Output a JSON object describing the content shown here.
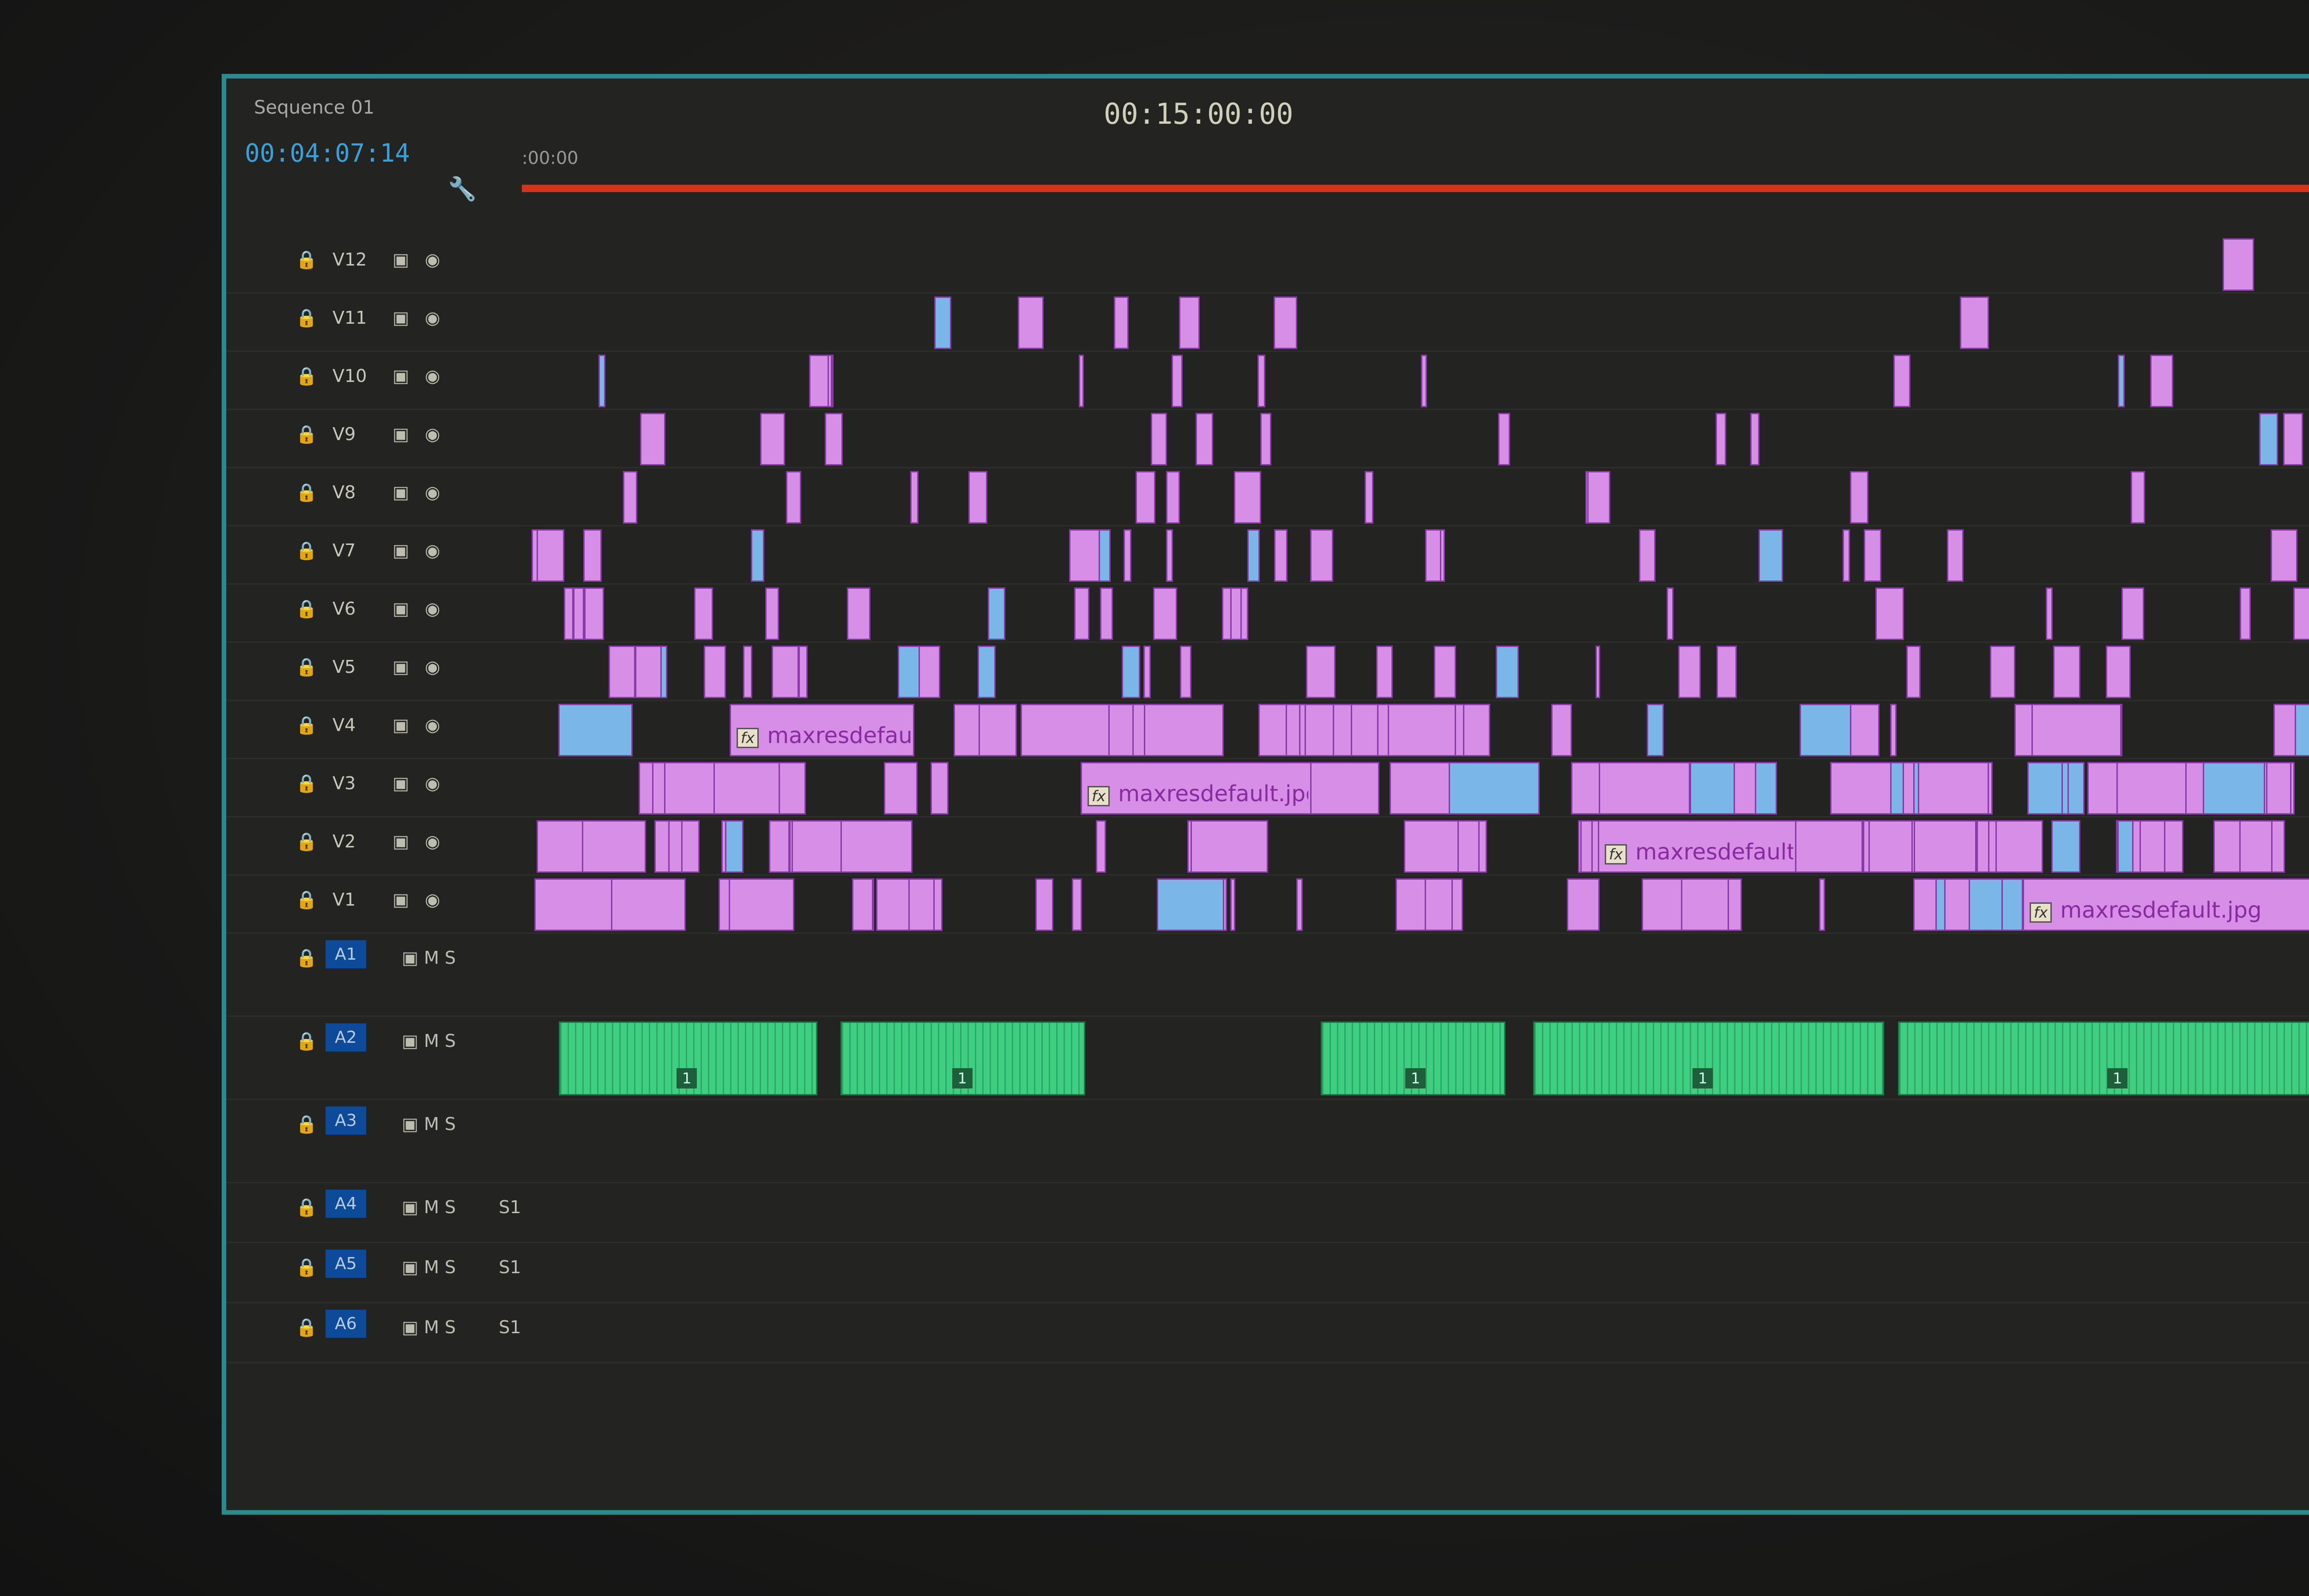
{
  "sequence": {
    "tab_label": "Sequence 01",
    "current_timecode": "00:04:07:14"
  },
  "ruler": {
    "start_label": ":00:00",
    "marker_timecode": "00:15:00:00"
  },
  "colors": {
    "video_clip": "#d68ee6",
    "audio_clip": "#3fcf82",
    "work_area_bar": "#d8321c",
    "track_target": "#0d4a9a",
    "panel_border": "#2a8a8c"
  },
  "video_tracks": [
    "V12",
    "V11",
    "V10",
    "V9",
    "V8",
    "V7",
    "V6",
    "V5",
    "V4",
    "V3",
    "V2",
    "V1"
  ],
  "audio_tracks": [
    "A1",
    "A2",
    "A3",
    "A4",
    "A5",
    "A6"
  ],
  "audio_controls": {
    "mute": "M",
    "solo": "S",
    "voice": "S1"
  },
  "clip_labels": [
    "fx maxresdefault.jpg",
    "maxresdefault.jpg",
    "maxresdefault.jpg",
    "maxresdefault.jpg",
    "maxresdefault.jpg",
    "maxresdefault.jpg"
  ],
  "fx_badge": "fx",
  "audio_badge": "1",
  "icons": {
    "lock": "lock-icon",
    "camera": "film-icon",
    "eye": "eye-icon",
    "wrench": "wrench-icon"
  }
}
